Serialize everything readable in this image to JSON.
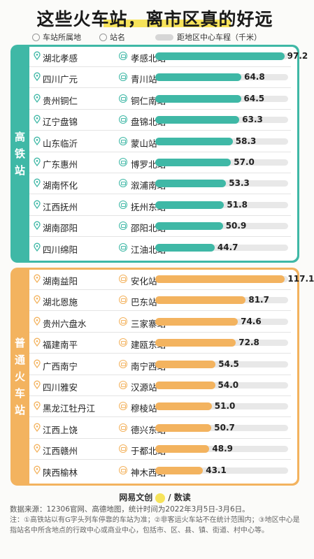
{
  "title": "这些火车站，离市区真的好远",
  "legend": {
    "location": "车站所属地",
    "station": "站名",
    "distance": "距地区中心车程（千米）"
  },
  "colors": {
    "high_speed": "#3fb8a6",
    "normal": "#f3b35f",
    "highlight": "#f6e35a"
  },
  "chart_data": [
    {
      "type": "bar",
      "name": "高铁站",
      "xlim": [
        0,
        100
      ],
      "categories": [
        "湖北孝感",
        "四川广元",
        "贵州铜仁",
        "辽宁盘锦",
        "山东临沂",
        "广东惠州",
        "湖南怀化",
        "江西抚州",
        "湖南邵阳",
        "四川绵阳"
      ],
      "stations": [
        "孝感北站",
        "青川站",
        "铜仁南站",
        "盘锦北站",
        "蒙山站",
        "博罗北站",
        "溆浦南站",
        "抚州东站",
        "邵阳北站",
        "江油北站"
      ],
      "values": [
        97.2,
        64.8,
        64.5,
        63.3,
        58.3,
        57.0,
        53.3,
        51.8,
        50.9,
        44.7
      ]
    },
    {
      "type": "bar",
      "name": "普通火车站",
      "xlim": [
        0,
        120
      ],
      "categories": [
        "湖南益阳",
        "湖北恩施",
        "贵州六盘水",
        "福建南平",
        "广西南宁",
        "四川雅安",
        "黑龙江牡丹江",
        "江西上饶",
        "江西赣州",
        "陕西榆林"
      ],
      "stations": [
        "安化站",
        "巴东站",
        "三家寨站",
        "建瓯东站",
        "南宁西站",
        "汉源站",
        "穆棱站",
        "德兴东站",
        "于都北站",
        "神木西站"
      ],
      "values": [
        117.1,
        81.7,
        74.6,
        72.8,
        54.5,
        54.0,
        51.0,
        50.7,
        48.9,
        43.1
      ]
    }
  ],
  "brand": "网易文创",
  "brand_suffix": "/ 数读",
  "source": "数据来源：12306官网、高德地图，统计时间为2022年3月5日-3月6日。",
  "note": "注：①高铁站以有G字头列车停靠的车站为准；②非客运火车站不在统计范围内；③地区中心是指站名中所含地点的行政中心或商业中心，包括市、区、县、镇、街道、村中心等。"
}
